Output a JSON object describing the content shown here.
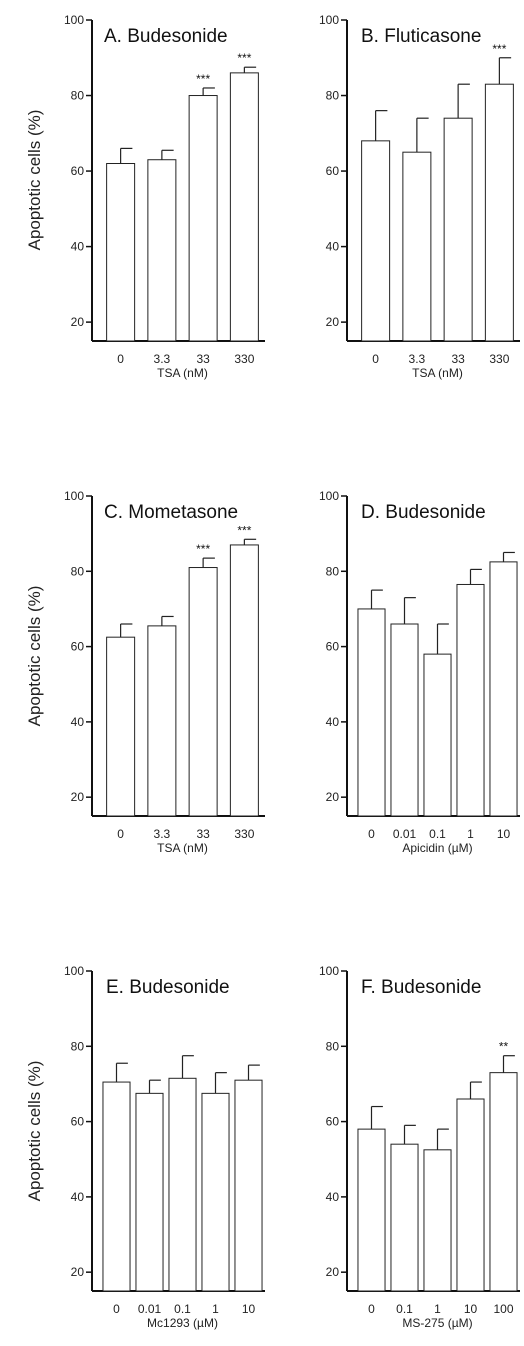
{
  "y_axis_label": "Apoptotic cells (%)",
  "chart_data": [
    {
      "type": "bar",
      "title": "A. Budesonide",
      "xlabel": "TSA (nM)",
      "ylabel": "Apoptotic cells (%)",
      "ylim": [
        15,
        100
      ],
      "yticks": [
        20,
        40,
        60,
        80,
        100
      ],
      "categories": [
        "0",
        "3.3",
        "33",
        "330"
      ],
      "values": [
        62,
        63,
        80,
        86
      ],
      "errors": [
        4,
        2.5,
        2,
        1.5
      ],
      "annotations": [
        "",
        "",
        "***",
        "***"
      ]
    },
    {
      "type": "bar",
      "title": "B. Fluticasone",
      "xlabel": "TSA (nM)",
      "ylabel": "",
      "ylim": [
        15,
        100
      ],
      "yticks": [
        20,
        40,
        60,
        80,
        100
      ],
      "categories": [
        "0",
        "3.3",
        "33",
        "330"
      ],
      "values": [
        68,
        65,
        74,
        83
      ],
      "errors": [
        8,
        9,
        9,
        7
      ],
      "annotations": [
        "",
        "",
        "",
        "***"
      ]
    },
    {
      "type": "bar",
      "title": "C. Mometasone",
      "xlabel": "TSA (nM)",
      "ylabel": "Apoptotic cells (%)",
      "ylim": [
        15,
        100
      ],
      "yticks": [
        20,
        40,
        60,
        80,
        100
      ],
      "categories": [
        "0",
        "3.3",
        "33",
        "330"
      ],
      "values": [
        62.5,
        65.5,
        81,
        87
      ],
      "errors": [
        3.5,
        2.5,
        2.5,
        1.5
      ],
      "annotations": [
        "",
        "",
        "***",
        "***"
      ]
    },
    {
      "type": "bar",
      "title": "D. Budesonide",
      "xlabel": "Apicidin (µM)",
      "ylabel": "",
      "ylim": [
        15,
        100
      ],
      "yticks": [
        20,
        40,
        60,
        80,
        100
      ],
      "categories": [
        "0",
        "0.01",
        "0.1",
        "1",
        "10"
      ],
      "values": [
        70,
        66,
        58,
        76.5,
        82.5
      ],
      "errors": [
        5,
        7,
        8,
        4,
        2.5
      ],
      "annotations": [
        "",
        "",
        "",
        "",
        ""
      ]
    },
    {
      "type": "bar",
      "title": "E. Budesonide",
      "xlabel": "Mc1293 (µM)",
      "ylabel": "Apoptotic cells (%)",
      "ylim": [
        15,
        100
      ],
      "yticks": [
        20,
        40,
        60,
        80,
        100
      ],
      "categories": [
        "0",
        "0.01",
        "0.1",
        "1",
        "10"
      ],
      "values": [
        70.5,
        67.5,
        71.5,
        67.5,
        71
      ],
      "errors": [
        5,
        3.5,
        6,
        5.5,
        4
      ],
      "annotations": [
        "",
        "",
        "",
        "",
        ""
      ]
    },
    {
      "type": "bar",
      "title": "F. Budesonide",
      "xlabel": "MS-275 (µM)",
      "ylabel": "",
      "ylim": [
        15,
        100
      ],
      "yticks": [
        20,
        40,
        60,
        80,
        100
      ],
      "categories": [
        "0",
        "0.1",
        "1",
        "10",
        "100"
      ],
      "values": [
        58,
        54,
        52.5,
        66,
        73
      ],
      "errors": [
        6,
        5,
        5.5,
        4.5,
        4.5
      ],
      "annotations": [
        "",
        "",
        "",
        "",
        "**"
      ]
    }
  ]
}
